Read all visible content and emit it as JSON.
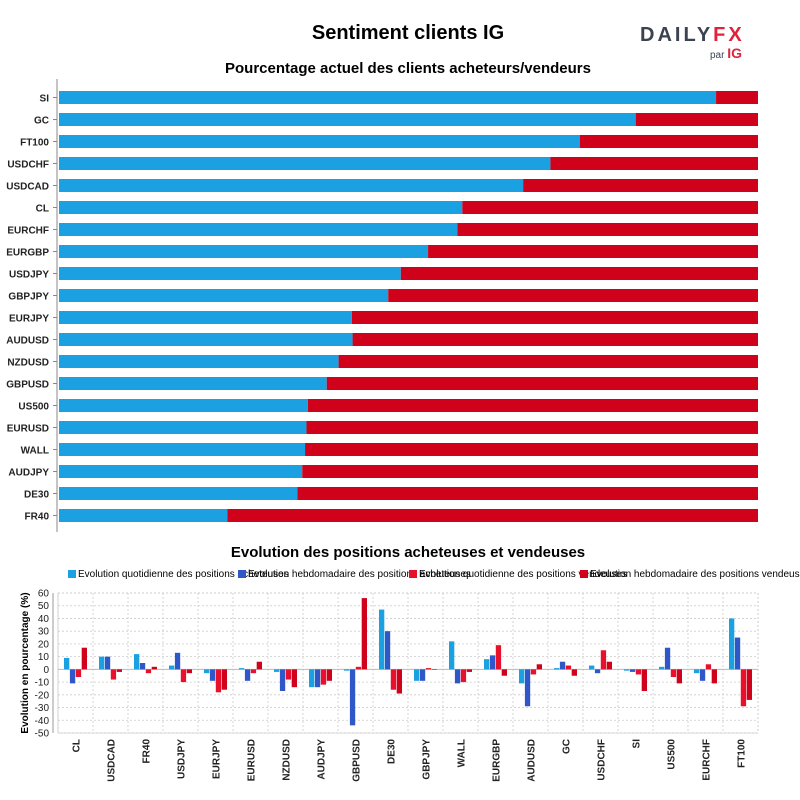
{
  "title": "Sentiment clients IG",
  "logo": {
    "word_main": "DAILY",
    "word_accent": "FX",
    "sub_prefix": "par",
    "sub_brand": "IG"
  },
  "colors": {
    "buy": "#1ba1e2",
    "sell": "#d0021b",
    "weekly_buy": "#2f57c8",
    "weekly_sell": "#e8102a",
    "grid": "#cccccc"
  },
  "chart_data": [
    {
      "type": "bar",
      "orientation": "horizontal",
      "stacked": true,
      "title": "Pourcentage actuel des clients acheteurs/vendeurs",
      "categories": [
        "SI",
        "GC",
        "FT100",
        "USDCHF",
        "USDCAD",
        "CL",
        "EURCHF",
        "EURGBP",
        "USDJPY",
        "GBPJPY",
        "EURJPY",
        "AUDUSD",
        "NZDUSD",
        "GBPUSD",
        "US500",
        "EURUSD",
        "WALL",
        "AUDJPY",
        "DE30",
        "FR40"
      ],
      "series": [
        {
          "values": [
            94,
            82.5,
            74.5,
            70.3,
            66.4,
            57.7,
            57,
            52.8,
            48.9,
            47.1,
            41.9,
            42,
            40,
            38.3,
            35.6,
            35.4,
            35.2,
            34.8,
            34.1,
            24.1
          ]
        },
        {
          "values": [
            6,
            17.5,
            25.5,
            29.7,
            33.6,
            42.3,
            43,
            47.2,
            51.1,
            52.9,
            58.1,
            58,
            60,
            61.7,
            64.4,
            64.6,
            64.8,
            65.2,
            65.9,
            75.9
          ]
        }
      ],
      "xlim": [
        0,
        100
      ]
    },
    {
      "type": "bar",
      "title": "Evolution des positions acheteuses et vendeuses",
      "ylabel": "Evolution en pourcentage (%)",
      "ylim": [
        -50,
        60
      ],
      "yticks": [
        60,
        50,
        40,
        30,
        20,
        10,
        0,
        -10,
        -20,
        -30,
        -40,
        -50
      ],
      "grid": true,
      "legend_position": "top",
      "categories": [
        "CL",
        "USDCAD",
        "FR40",
        "USDJPY",
        "EURJPY",
        "EURUSD",
        "NZDUSD",
        "AUDJPY",
        "GBPUSD",
        "DE30",
        "GBPJPY",
        "WALL",
        "EURGBP",
        "AUDUSD",
        "GC",
        "USDCHF",
        "SI",
        "US500",
        "EURCHF",
        "FT100"
      ],
      "series": [
        {
          "name": "Evolution quotidienne des positions acheteuses",
          "values": [
            9,
            10,
            12,
            3,
            -3,
            1,
            -2,
            -14,
            -1,
            47,
            -9,
            22,
            8,
            -11,
            1,
            3,
            -1,
            2,
            -3,
            40
          ]
        },
        {
          "name": "Evolution hebdomadaire des positions acheteuses",
          "values": [
            -11,
            10,
            5,
            13,
            -9,
            -9,
            -17,
            -14,
            -44,
            30,
            -9,
            -11,
            11,
            -29,
            6,
            -3,
            -2,
            17,
            -9,
            25
          ]
        },
        {
          "name": "Evolution quotidienne des positions vendeuses",
          "values": [
            -6,
            -8,
            -3,
            -10,
            -18,
            -3,
            -8,
            -12,
            2,
            -16,
            1,
            -10,
            19,
            -4,
            3,
            15,
            -4,
            -6,
            4,
            -29
          ]
        },
        {
          "name": "Evolution hebdomadaire des positions vendeuses",
          "values": [
            17,
            -2,
            2,
            -3,
            -16,
            6,
            -14,
            -9,
            56,
            -19,
            0,
            -2,
            -5,
            4,
            -5,
            6,
            -17,
            -11,
            -11,
            -24
          ]
        }
      ]
    }
  ]
}
